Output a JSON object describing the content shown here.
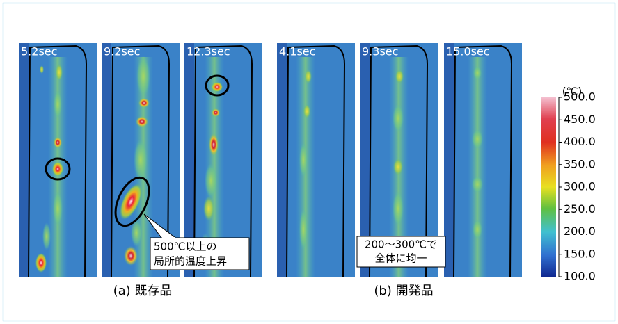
{
  "panels": [
    {
      "label": "5.2sec"
    },
    {
      "label": "9.2sec"
    },
    {
      "label": "12.3sec"
    },
    {
      "label": "4.1sec"
    },
    {
      "label": "9.3sec"
    },
    {
      "label": "15.0sec"
    }
  ],
  "captions": {
    "a": "(a) 既存品",
    "b": "(b) 開発品"
  },
  "annotations": [
    [
      "500℃以上の",
      "局所的温度上昇"
    ],
    [
      "200〜300℃で",
      "全体に均一"
    ]
  ],
  "colorbar": {
    "unit": "(℃)",
    "lim": [
      100,
      500
    ],
    "ticks": [
      {
        "value": 500,
        "label": "500.0"
      },
      {
        "value": 450,
        "label": "450.0"
      },
      {
        "value": 400,
        "label": "400.0"
      },
      {
        "value": 350,
        "label": "350.0"
      },
      {
        "value": 300,
        "label": "300.0"
      },
      {
        "value": 250,
        "label": "250.0"
      },
      {
        "value": 200,
        "label": "200.0"
      },
      {
        "value": 150,
        "label": "150.0"
      },
      {
        "value": 100,
        "label": "100.0"
      }
    ]
  }
}
